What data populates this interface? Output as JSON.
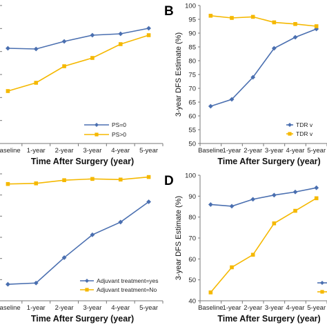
{
  "colors": {
    "blue": "#4a6fb0",
    "yellow": "#f5b800"
  },
  "chart_data": [
    {
      "type": "line",
      "panel": "",
      "categories": [
        "Baseline",
        "1-year",
        "2-year",
        "3-year",
        "4-year",
        "5-year"
      ],
      "xlabel": "Time After Surgery (year)",
      "ylabel": "",
      "y_ticks": [],
      "ylim": [
        0,
        10
      ],
      "legend_position": "bottom-right",
      "series": [
        {
          "name": "PS=0",
          "color": "#4a6fb0",
          "marker": "diamond",
          "values": [
            6.9,
            6.85,
            7.4,
            7.85,
            7.95,
            8.35
          ]
        },
        {
          "name": "PS>0",
          "color": "#f5b800",
          "marker": "square",
          "values": [
            3.8,
            4.4,
            5.6,
            6.2,
            7.2,
            7.85
          ]
        }
      ]
    },
    {
      "type": "line",
      "panel": "B",
      "categories": [
        "Baseline",
        "1-year",
        "2-year",
        "3-year",
        "4-year",
        "5-year"
      ],
      "xlabel": "Time After Surgery (year)",
      "ylabel": "3-year DFS Estimate (%)",
      "y_ticks": [
        50,
        55,
        60,
        65,
        70,
        75,
        80,
        85,
        90,
        95,
        100
      ],
      "ylim": [
        50,
        100
      ],
      "legend_position": "bottom-right",
      "series": [
        {
          "name": "TDR v",
          "color": "#4a6fb0",
          "marker": "diamond",
          "values": [
            63.5,
            66,
            74,
            84.5,
            88.5,
            91.5
          ]
        },
        {
          "name": "TDR v",
          "color": "#f5b800",
          "marker": "square",
          "values": [
            96.3,
            95.5,
            95.9,
            93.9,
            93.3,
            92.5
          ]
        }
      ]
    },
    {
      "type": "line",
      "panel": "",
      "categories": [
        "Baseline",
        "1-year",
        "2-year",
        "3-year",
        "4-year",
        "5-year"
      ],
      "xlabel": "Time After Surgery (year)",
      "ylabel": "",
      "y_ticks": [],
      "ylim": [
        0,
        10
      ],
      "legend_position": "bottom-right",
      "series": [
        {
          "name": "Adjuvant treatment=yes",
          "color": "#4a6fb0",
          "marker": "diamond",
          "values": [
            1.3,
            1.4,
            3.4,
            5.2,
            6.2,
            7.8
          ]
        },
        {
          "name": "Adjuvant treatment=No",
          "color": "#f5b800",
          "marker": "square",
          "values": [
            9.2,
            9.25,
            9.5,
            9.6,
            9.55,
            9.75
          ]
        }
      ]
    },
    {
      "type": "line",
      "panel": "D",
      "categories": [
        "Baseline",
        "1-year",
        "2-year",
        "3-year",
        "4-year",
        "5-year"
      ],
      "xlabel": "Time After Surgery (year)",
      "ylabel": "3-year DFS Estimate (%)",
      "y_ticks": [
        40,
        50,
        60,
        70,
        80,
        90,
        100
      ],
      "ylim": [
        40,
        100
      ],
      "legend_position": "bottom-right",
      "series": [
        {
          "name": "",
          "color": "#4a6fb0",
          "marker": "diamond",
          "values": [
            86,
            85.2,
            88.5,
            90.5,
            92,
            94
          ]
        },
        {
          "name": "",
          "color": "#f5b800",
          "marker": "square",
          "values": [
            44,
            56,
            62,
            77,
            83,
            89
          ]
        }
      ]
    }
  ]
}
